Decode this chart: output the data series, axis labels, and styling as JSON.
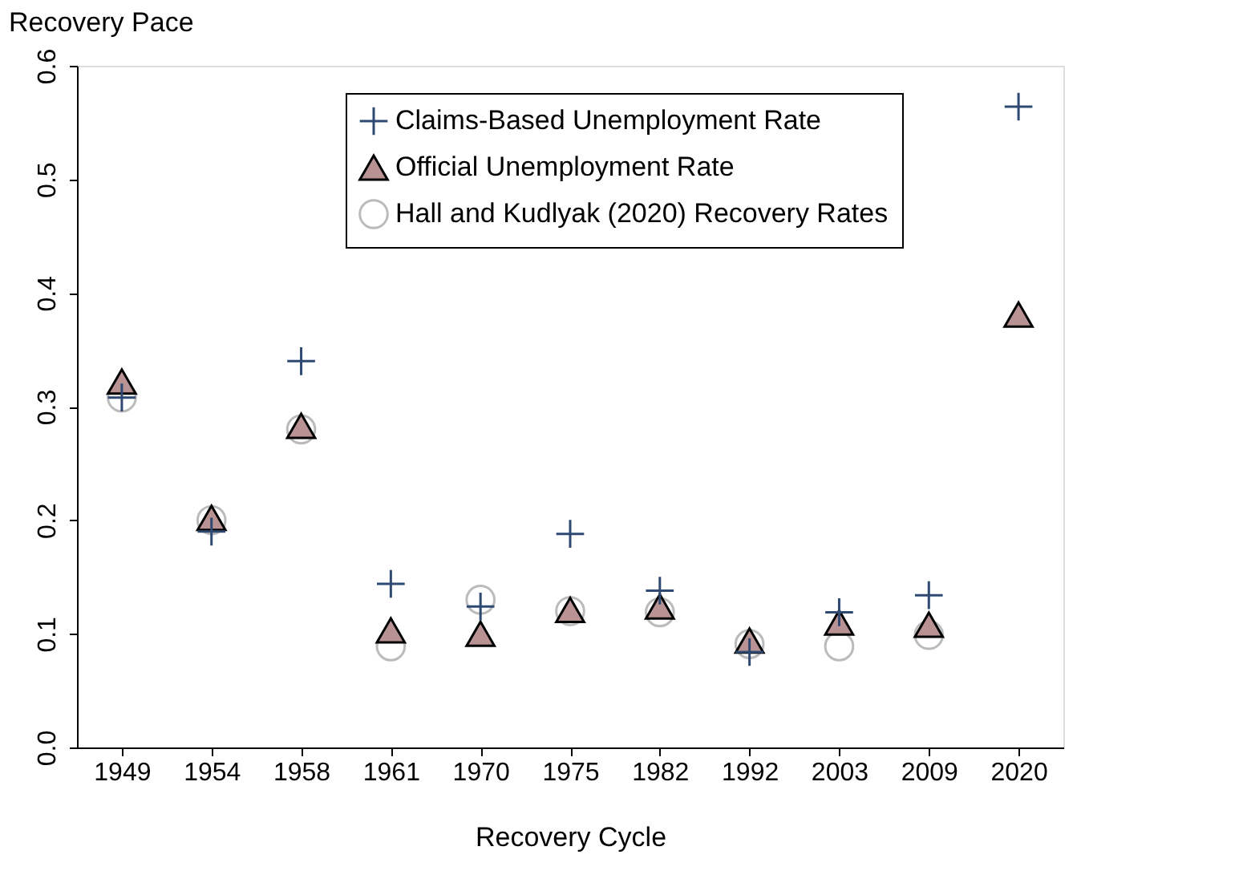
{
  "chart_data": {
    "type": "scatter",
    "xlabel": "Recovery Cycle",
    "ylabel": "Recovery Pace",
    "categories": [
      "1949",
      "1954",
      "1958",
      "1961",
      "1970",
      "1975",
      "1982",
      "1992",
      "2003",
      "2009",
      "2020"
    ],
    "series": [
      {
        "name": "Claims-Based Unemployment Rate",
        "color": "#2e4a72",
        "marker": "cross",
        "values": [
          0.308,
          0.19,
          0.34,
          0.144,
          0.124,
          0.188,
          0.138,
          0.084,
          0.119,
          0.134,
          0.564
        ]
      },
      {
        "name": "Official Unemployment Rate",
        "color": "#b99393",
        "marker": "triangle",
        "values": [
          0.322,
          0.202,
          0.283,
          0.103,
          0.1,
          0.121,
          0.124,
          0.094,
          0.11,
          0.108,
          0.381
        ]
      },
      {
        "name": "Hall and Kudlyak (2020) Recovery Rates",
        "color": "#bbbbbb",
        "marker": "circle",
        "values": [
          0.308,
          0.2,
          0.28,
          0.089,
          0.13,
          0.12,
          0.119,
          0.091,
          0.089,
          0.099,
          null
        ]
      }
    ],
    "ylim": [
      0,
      0.6
    ],
    "yticks": [
      {
        "value": 0,
        "label": "0.0"
      },
      0.1,
      0.2,
      0.3,
      0.4,
      0.5,
      0.6
    ],
    "grid": false,
    "legend": "top"
  }
}
